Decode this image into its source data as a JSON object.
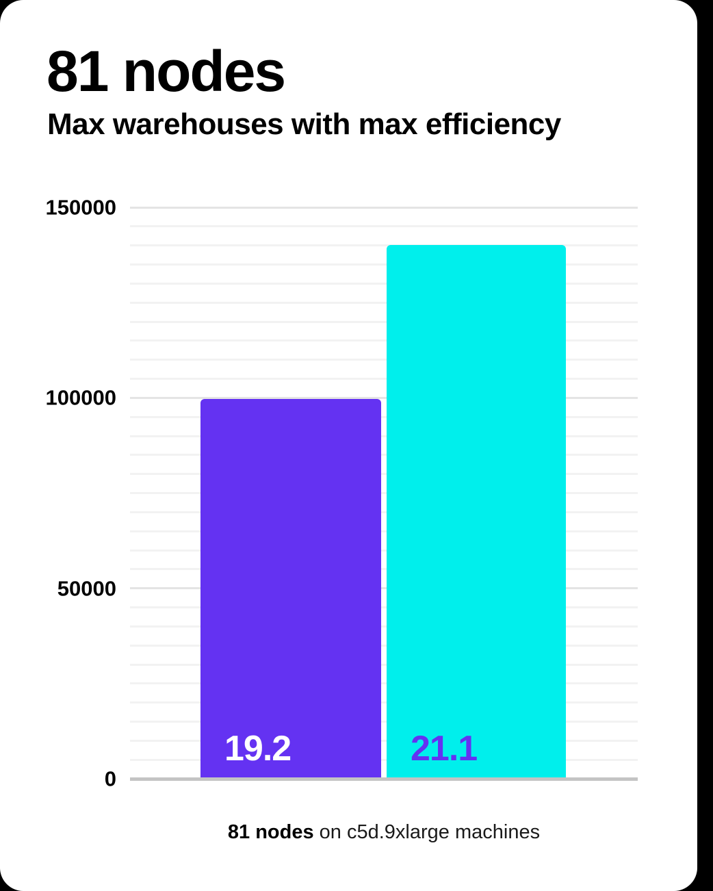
{
  "card": {
    "title": "81 nodes",
    "subtitle": "Max warehouses with max efficiency",
    "caption_bold": "81 nodes",
    "caption_rest": " on c5d.9xlarge machines"
  },
  "colors": {
    "page_background": "#000000",
    "card_background": "#ffffff",
    "bar_purple": "#6432f2",
    "bar_cyan": "#00efec",
    "bar_label_on_purple": "#ffffff",
    "bar_label_on_cyan": "#6432f2",
    "grid_minor": "#f2f2f2",
    "grid_major": "#e4e4e4",
    "axis_baseline": "#c4c4c4",
    "text": "#000000"
  },
  "chart_data": {
    "type": "bar",
    "title": "81 nodes",
    "subtitle": "Max warehouses with max efficiency",
    "caption": "81 nodes on c5d.9xlarge machines",
    "categories": [
      "19.2",
      "21.1"
    ],
    "values": [
      99700,
      140100
    ],
    "bar_labels": [
      "19.2",
      "21.1"
    ],
    "bar_colors": [
      "#6432f2",
      "#00efec"
    ],
    "bar_label_colors": [
      "#ffffff",
      "#6432f2"
    ],
    "ylim": [
      0,
      150000
    ],
    "yticks": [
      0,
      50000,
      100000,
      150000
    ],
    "minor_grid_step": 5000,
    "grid": "horizontal",
    "legend": "none",
    "xlabel": "",
    "ylabel": ""
  }
}
